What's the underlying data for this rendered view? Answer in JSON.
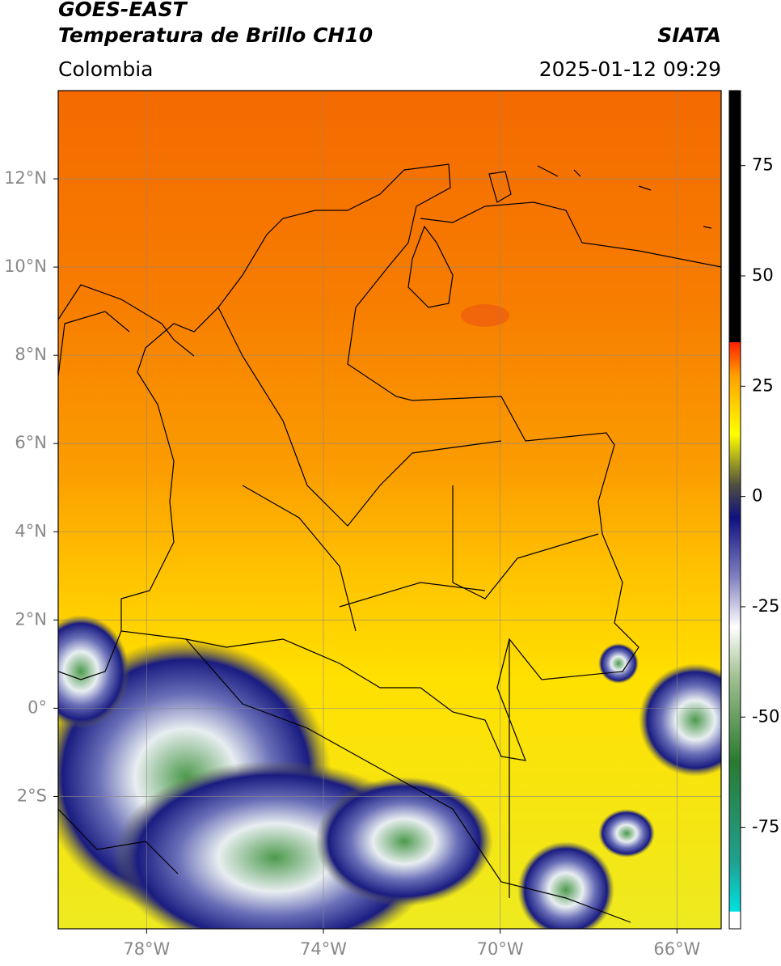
{
  "header": {
    "title_line1": "GOES-EAST",
    "title_line2": "Temperatura de Brillo CH10",
    "source": "SIATA",
    "region": "Colombia",
    "timestamp": "2025-01-12 09:29"
  },
  "map": {
    "lonlim": [
      -80,
      -65
    ],
    "latlim": [
      -5,
      14
    ],
    "lon_ticks": [
      {
        "value": -78,
        "label": "78°W"
      },
      {
        "value": -74,
        "label": "74°W"
      },
      {
        "value": -70,
        "label": "70°W"
      },
      {
        "value": -66,
        "label": "66°W"
      }
    ],
    "lat_ticks": [
      {
        "value": 12,
        "label": "12°N"
      },
      {
        "value": 10,
        "label": "10°N"
      },
      {
        "value": 8,
        "label": "8°N"
      },
      {
        "value": 6,
        "label": "6°N"
      },
      {
        "value": 4,
        "label": "4°N"
      },
      {
        "value": 2,
        "label": "2°N"
      },
      {
        "value": 0,
        "label": "0°"
      },
      {
        "value": -2,
        "label": "2°S"
      }
    ],
    "grid": true
  },
  "colorbar": {
    "lim": [
      -98,
      92
    ],
    "ticks": [
      75,
      50,
      25,
      0,
      -25,
      -50,
      -75
    ]
  }
}
